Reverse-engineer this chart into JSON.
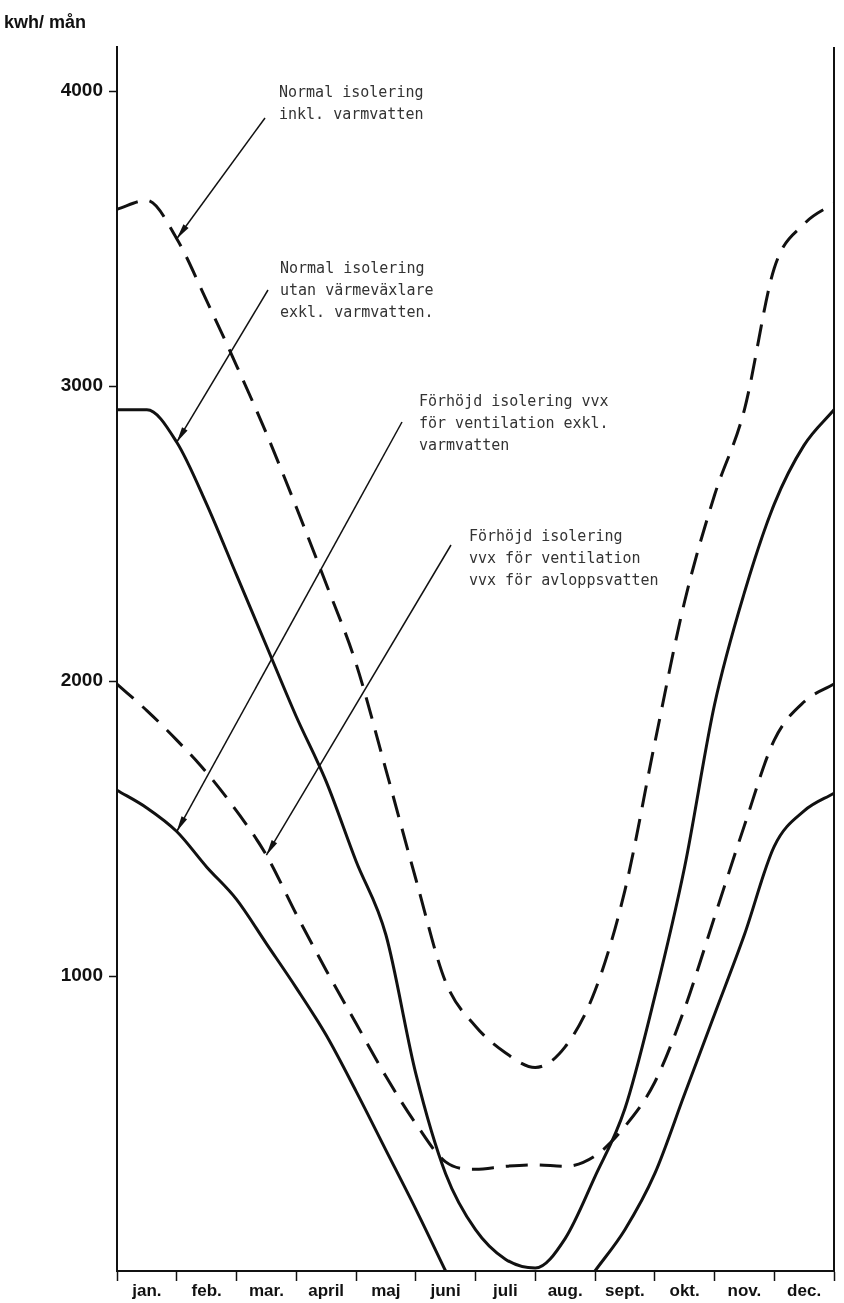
{
  "chart_data": {
    "type": "line",
    "ylabel": "kwh/ mån",
    "ylim": [
      0,
      4150
    ],
    "categories": [
      null,
      "jan.",
      null,
      "feb.",
      null,
      "mar.",
      null,
      "april",
      null,
      "maj",
      null,
      "juni",
      null,
      "juli",
      null,
      "aug.",
      null,
      "sept.",
      null,
      "okt.",
      null,
      "nov.",
      null,
      "dec.",
      null
    ],
    "yticks": [
      1000,
      2000,
      3000,
      4000
    ],
    "grid": false,
    "legend": false,
    "marker": "none",
    "series": [
      {
        "name": "Normal isolering\ninkl. varmvatten",
        "color": "#111111",
        "line_style": "dashed",
        "values": [
          3600,
          3630,
          3500,
          3290,
          3070,
          2840,
          2590,
          2330,
          2060,
          1700,
          1330,
          980,
          830,
          740,
          690,
          760,
          950,
          1290,
          1790,
          2270,
          2630,
          2920,
          3400,
          3550,
          3620
        ]
      },
      {
        "name": "Normal isolering\nutan värmeväxlare\nexkl. varmvatten.",
        "color": "#111111",
        "line_style": "solid",
        "values": [
          2920,
          2920,
          2810,
          2600,
          2360,
          2120,
          1880,
          1660,
          1390,
          1140,
          670,
          330,
          140,
          40,
          10,
          110,
          320,
          550,
          930,
          1370,
          1920,
          2300,
          2600,
          2800,
          2920
        ]
      },
      {
        "name": "Förhöjd isolering vvx\nför ventilation exkl.\nvarmvatten",
        "color": "#111111",
        "line_style": "solid",
        "values": [
          1630,
          1570,
          1490,
          1370,
          1260,
          1110,
          960,
          800,
          610,
          410,
          210,
          0,
          null,
          null,
          null,
          null,
          0,
          140,
          330,
          600,
          870,
          1140,
          1440,
          1560,
          1620
        ]
      },
      {
        "name": "Förhöjd isolering\nvvx för ventilation\nvvx för avloppsvatten",
        "color": "#111111",
        "line_style": "dashed",
        "values": [
          1990,
          1900,
          1800,
          1690,
          1560,
          1410,
          1210,
          1020,
          840,
          660,
          500,
          370,
          345,
          355,
          360,
          355,
          390,
          490,
          640,
          890,
          1200,
          1510,
          1800,
          1930,
          1990
        ]
      }
    ]
  }
}
